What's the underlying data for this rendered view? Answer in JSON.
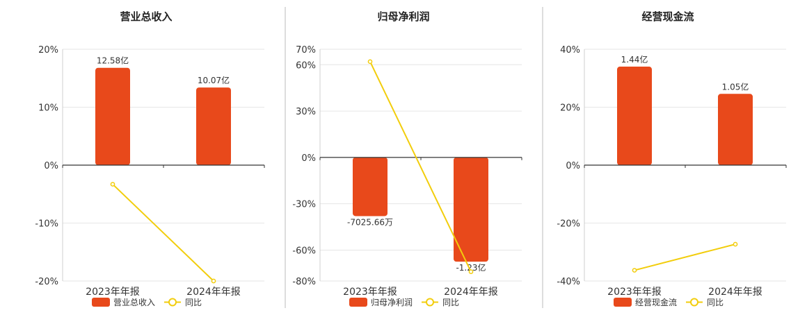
{
  "colors": {
    "bar": "#E8491B",
    "line": "#F2CD0C",
    "grid": "#E6E6E6",
    "axis": "#333333",
    "text": "#333333",
    "divider": "#BBBBBB"
  },
  "chart_data": [
    {
      "type": "bar",
      "title": "营业总收入",
      "categories": [
        "2023年年报",
        "2024年年报"
      ],
      "series": [
        {
          "name": "营业总收入",
          "type": "bar",
          "values": [
            16.8,
            13.4
          ],
          "labels": [
            "12.58亿",
            "10.07亿"
          ]
        },
        {
          "name": "同比",
          "type": "line",
          "values": [
            -3.3,
            -20.0
          ]
        }
      ],
      "yticks": [
        "20%",
        "10%",
        "0%",
        "-10%",
        "-20%"
      ],
      "ytick_values": [
        20,
        10,
        0,
        -10,
        -20
      ],
      "ylim": [
        -20,
        20
      ]
    },
    {
      "type": "bar",
      "title": "归母净利润",
      "categories": [
        "2023年年报",
        "2024年年报"
      ],
      "series": [
        {
          "name": "归母净利润",
          "type": "bar",
          "values": [
            -38.0,
            -67.5
          ],
          "labels": [
            "-7025.66万",
            "-1.23亿"
          ]
        },
        {
          "name": "同比",
          "type": "line",
          "values": [
            62.0,
            -74.0
          ]
        }
      ],
      "yticks": [
        "70%",
        "60%",
        "30%",
        "0%",
        "-30%",
        "-60%",
        "-80%"
      ],
      "ytick_values": [
        70,
        60,
        30,
        0,
        -30,
        -60,
        -80
      ],
      "ylim": [
        -80,
        70
      ]
    },
    {
      "type": "bar",
      "title": "经营现金流",
      "categories": [
        "2023年年报",
        "2024年年报"
      ],
      "series": [
        {
          "name": "经营现金流",
          "type": "bar",
          "values": [
            34.0,
            24.6
          ],
          "labels": [
            "1.44亿",
            "1.05亿"
          ]
        },
        {
          "name": "同比",
          "type": "line",
          "values": [
            -36.3,
            -27.3
          ]
        }
      ],
      "yticks": [
        "40%",
        "20%",
        "0%",
        "-20%",
        "-40%"
      ],
      "ytick_values": [
        40,
        20,
        0,
        -20,
        -40
      ],
      "ylim": [
        -40,
        40
      ]
    }
  ]
}
